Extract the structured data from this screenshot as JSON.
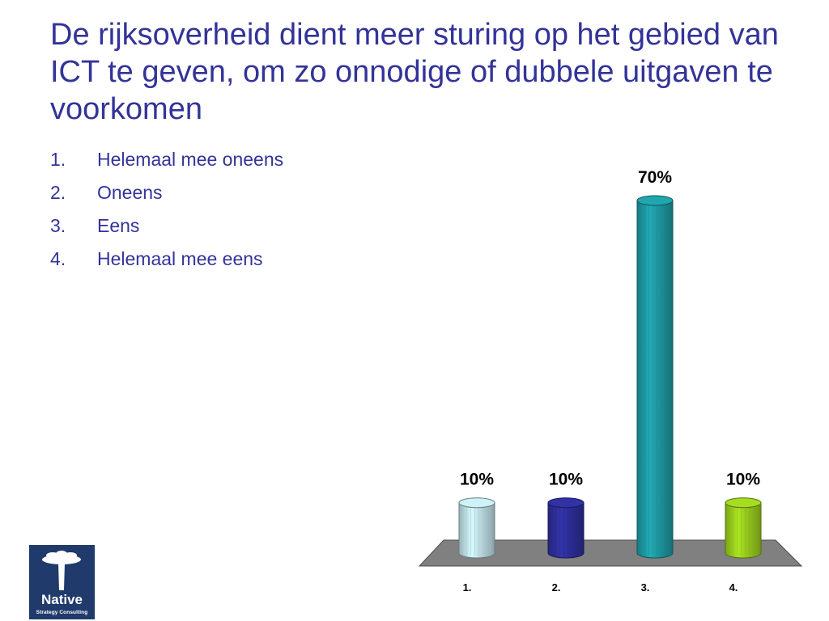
{
  "slide": {
    "title": "De rijksoverheid dient meer sturing op het gebied van ICT te geven, om zo onnodige of dubbele uitgaven te voorkomen",
    "title_color": "#333399",
    "options": [
      {
        "number": "1.",
        "label": "Helemaal mee oneens"
      },
      {
        "number": "2.",
        "label": "Oneens"
      },
      {
        "number": "3.",
        "label": "Eens"
      },
      {
        "number": "4.",
        "label": "Helemaal mee eens"
      }
    ]
  },
  "chart_data": {
    "type": "bar",
    "categories": [
      "1.",
      "2.",
      "3.",
      "4."
    ],
    "values": [
      10,
      10,
      70,
      10
    ],
    "data_labels": [
      "10%",
      "10%",
      "70%",
      "10%"
    ],
    "colors": [
      "#bfe0e6",
      "#2e2e9a",
      "#1e9aa2",
      "#9acd1e"
    ],
    "unit": "%",
    "ylim": [
      0,
      70
    ],
    "grid": false,
    "legend": "none"
  },
  "logo": {
    "name": "Native",
    "tagline": "Strategy Consulting",
    "icon": "tree-icon",
    "background": "#1f3a6b"
  }
}
